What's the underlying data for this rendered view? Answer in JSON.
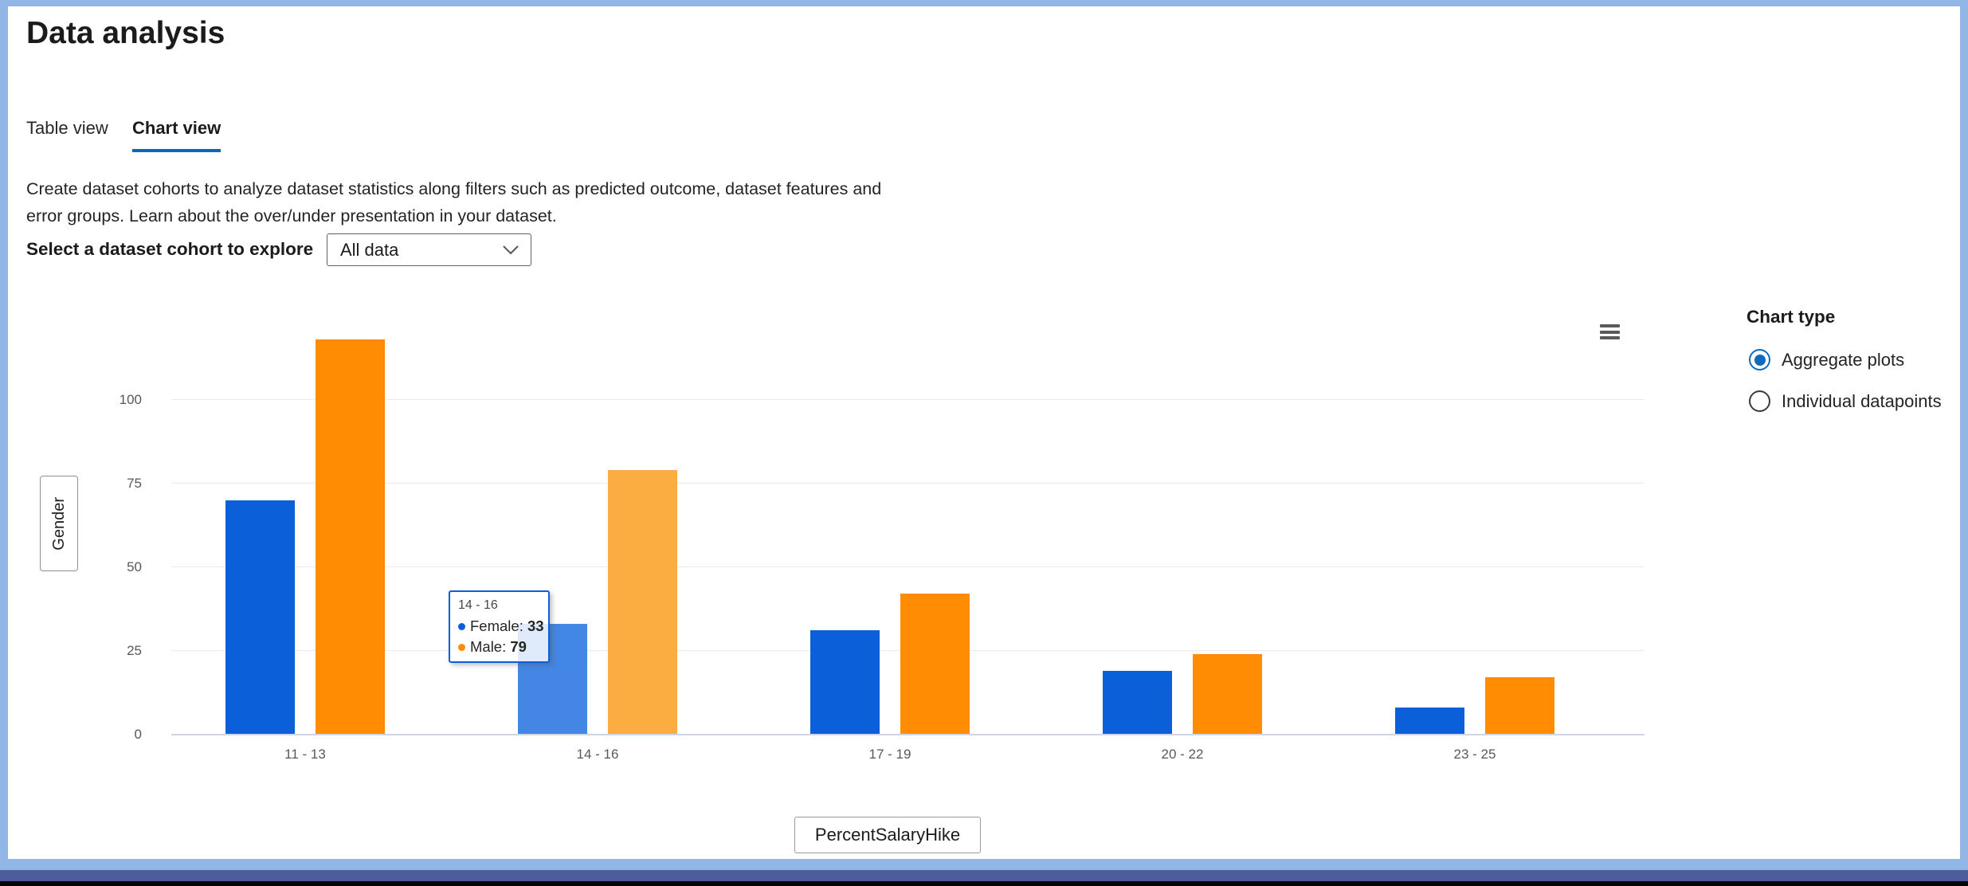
{
  "header": {
    "title": "Data analysis"
  },
  "tabs": [
    {
      "label": "Table view",
      "active": false
    },
    {
      "label": "Chart view",
      "active": true
    }
  ],
  "description": "Create dataset cohorts to analyze dataset statistics along filters such as predicted outcome, dataset features and error groups. Learn about the over/under presentation in your dataset.",
  "cohort": {
    "label": "Select a dataset cohort to explore",
    "selected": "All data"
  },
  "chart_type_panel": {
    "title": "Chart type",
    "options": [
      {
        "label": "Aggregate plots",
        "selected": true
      },
      {
        "label": "Individual datapoints",
        "selected": false
      }
    ]
  },
  "y_axis_button": "Gender",
  "x_axis_button": "PercentSalaryHike",
  "icons": {
    "menu": "hamburger-menu-icon",
    "dropdown": "chevron-down-icon"
  },
  "colors": {
    "accent": "#0f6cbd",
    "tab_underline": "#0e63c5",
    "frame_blue": "#92b6e6",
    "female_bar": "#0b5fd9",
    "female_bar_hover": "#4486e4",
    "male_bar": "#ff8c02",
    "male_bar_hover": "#fbad41"
  },
  "tooltip": {
    "title": "14 - 16",
    "items": [
      {
        "label": "Female:",
        "value": "33"
      },
      {
        "label": "Male:",
        "value": "79"
      }
    ]
  },
  "chart_data": {
    "type": "bar",
    "title": "",
    "xlabel": "PercentSalaryHike",
    "ylabel": "Gender",
    "categories": [
      "11 - 13",
      "14 - 16",
      "17 - 19",
      "20 - 22",
      "23 - 25"
    ],
    "series": [
      {
        "name": "Female",
        "color": "#0b5fd9",
        "hover_color": "#4486e4",
        "values": [
          70,
          33,
          31,
          19,
          8
        ]
      },
      {
        "name": "Male",
        "color": "#ff8c02",
        "hover_color": "#fbad41",
        "values": [
          118,
          79,
          42,
          24,
          17
        ]
      }
    ],
    "yticks": [
      0,
      25,
      50,
      75,
      100
    ],
    "ylim": [
      0,
      125
    ],
    "grid": true,
    "legend_position": "none",
    "hovered_category_index": 1
  }
}
